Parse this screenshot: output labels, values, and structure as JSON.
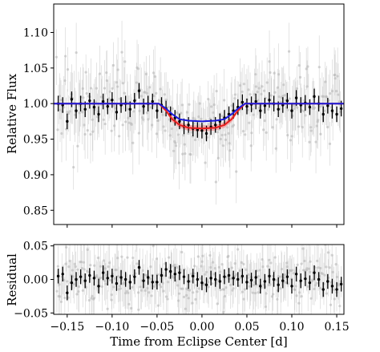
{
  "chart_data": [
    {
      "type": "scatter",
      "panel": "top",
      "ylabel": "Relative Flux",
      "xlabel": "",
      "xlim": [
        -0.165,
        0.158
      ],
      "ylim": [
        0.83,
        1.14
      ],
      "xticks": [
        -0.15,
        -0.1,
        -0.05,
        0.0,
        0.05,
        0.1,
        0.15
      ],
      "xtick_labels": [
        "",
        "",
        "",
        "",
        "",
        "",
        ""
      ],
      "yticks": [
        0.85,
        0.9,
        0.95,
        1.0,
        1.05,
        1.1
      ],
      "ytick_labels": [
        "0.85",
        "0.90",
        "0.95",
        "1.00",
        "1.05",
        "1.10"
      ],
      "grid": false,
      "colors": {
        "raw": "#b8b8b8",
        "binned": "#000000",
        "model_blue": "#1a1adc",
        "model_red": "#e61e1e",
        "band_red": "#f4a0a0"
      },
      "binned": {
        "x": [
          -0.16,
          -0.155,
          -0.15,
          -0.145,
          -0.14,
          -0.135,
          -0.13,
          -0.125,
          -0.12,
          -0.115,
          -0.11,
          -0.105,
          -0.1,
          -0.095,
          -0.09,
          -0.085,
          -0.08,
          -0.075,
          -0.07,
          -0.065,
          -0.06,
          -0.055,
          -0.05,
          -0.045,
          -0.04,
          -0.035,
          -0.03,
          -0.025,
          -0.02,
          -0.015,
          -0.01,
          -0.005,
          0.0,
          0.005,
          0.01,
          0.015,
          0.02,
          0.025,
          0.03,
          0.035,
          0.04,
          0.045,
          0.05,
          0.055,
          0.06,
          0.065,
          0.07,
          0.075,
          0.08,
          0.085,
          0.09,
          0.095,
          0.1,
          0.105,
          0.11,
          0.115,
          0.12,
          0.125,
          0.13,
          0.135,
          0.14,
          0.145,
          0.15,
          0.155
        ],
        "y": [
          1.0,
          0.998,
          0.975,
          1.006,
          0.99,
          1.0,
          0.992,
          1.004,
          0.995,
          0.985,
          1.003,
          0.996,
          1.005,
          0.988,
          0.998,
          1.0,
          0.992,
          1.004,
          1.018,
          0.996,
          1.0,
          1.003,
          0.99,
          0.998,
          0.993,
          0.985,
          0.98,
          0.975,
          0.968,
          0.97,
          0.965,
          0.963,
          0.962,
          0.958,
          0.967,
          0.97,
          0.975,
          0.98,
          0.985,
          0.99,
          0.995,
          1.002,
          0.996,
          0.999,
          1.003,
          0.99,
          0.997,
          1.005,
          1.0,
          0.992,
          0.998,
          1.004,
          0.99,
          1.008,
          0.998,
          1.001,
          0.995,
          1.01,
          1.0,
          0.985,
          0.997,
          0.99,
          0.985,
          0.993
        ],
        "yerr": 0.011
      },
      "raw": {
        "n": 330,
        "x_range": [
          -0.162,
          0.155
        ],
        "scatter_sd": 0.028,
        "yerr": 0.035,
        "seed": 7
      },
      "model_blue": {
        "x": [
          -0.165,
          -0.048,
          -0.04,
          -0.033,
          -0.025,
          -0.015,
          0.0,
          0.015,
          0.025,
          0.033,
          0.04,
          0.048,
          0.158
        ],
        "y": [
          1.0,
          1.0,
          0.993,
          0.985,
          0.978,
          0.976,
          0.975,
          0.976,
          0.978,
          0.985,
          0.993,
          1.0,
          1.0
        ]
      },
      "model_red": {
        "x": [
          -0.165,
          -0.048,
          -0.04,
          -0.033,
          -0.025,
          -0.015,
          0.0,
          0.015,
          0.025,
          0.033,
          0.04,
          0.048,
          0.158
        ],
        "y": [
          1.0,
          1.0,
          0.99,
          0.978,
          0.97,
          0.966,
          0.965,
          0.966,
          0.97,
          0.978,
          0.99,
          1.0,
          1.0
        ],
        "band": 0.004
      }
    },
    {
      "type": "scatter",
      "panel": "bottom",
      "ylabel": "Residual",
      "xlabel": "Time from Eclipse Center [d]",
      "xlim": [
        -0.165,
        0.158
      ],
      "ylim": [
        -0.052,
        0.052
      ],
      "xticks": [
        -0.15,
        -0.1,
        -0.05,
        0.0,
        0.05,
        0.1,
        0.15
      ],
      "xtick_labels": [
        "−0.15",
        "−0.10",
        "−0.05",
        "0.00",
        "0.05",
        "0.10",
        "0.15"
      ],
      "yticks": [
        -0.05,
        0.0,
        0.05
      ],
      "ytick_labels": [
        "−0.05",
        "0.00",
        "0.05"
      ],
      "grid": false,
      "binned": {
        "x": [
          -0.16,
          -0.155,
          -0.15,
          -0.145,
          -0.14,
          -0.135,
          -0.13,
          -0.125,
          -0.12,
          -0.115,
          -0.11,
          -0.105,
          -0.1,
          -0.095,
          -0.09,
          -0.085,
          -0.08,
          -0.075,
          -0.07,
          -0.065,
          -0.06,
          -0.055,
          -0.05,
          -0.045,
          -0.04,
          -0.035,
          -0.03,
          -0.025,
          -0.02,
          -0.015,
          -0.01,
          -0.005,
          0.0,
          0.005,
          0.01,
          0.015,
          0.02,
          0.025,
          0.03,
          0.035,
          0.04,
          0.045,
          0.05,
          0.055,
          0.06,
          0.065,
          0.07,
          0.075,
          0.08,
          0.085,
          0.09,
          0.095,
          0.1,
          0.105,
          0.11,
          0.115,
          0.12,
          0.125,
          0.13,
          0.135,
          0.14,
          0.145,
          0.15,
          0.155
        ],
        "y": [
          0.005,
          0.008,
          -0.02,
          -0.005,
          0.0,
          0.004,
          -0.002,
          0.006,
          0.002,
          -0.01,
          0.01,
          0.002,
          0.005,
          -0.006,
          0.003,
          0.0,
          -0.004,
          0.004,
          0.018,
          -0.002,
          0.003,
          -0.004,
          -0.004,
          0.006,
          0.015,
          0.012,
          0.008,
          0.01,
          0.004,
          -0.003,
          0.005,
          0.0,
          -0.005,
          -0.008,
          0.002,
          0.0,
          -0.003,
          0.004,
          0.006,
          0.002,
          0.0,
          0.005,
          -0.004,
          -0.001,
          0.003,
          -0.01,
          -0.003,
          0.005,
          0.0,
          -0.008,
          -0.002,
          0.004,
          -0.01,
          0.008,
          -0.002,
          0.001,
          -0.005,
          0.01,
          0.0,
          -0.015,
          -0.003,
          -0.01,
          -0.015,
          -0.007
        ],
        "yerr": 0.011
      },
      "raw": {
        "n": 330,
        "x_range": [
          -0.162,
          0.155
        ],
        "scatter_sd": 0.02,
        "yerr": 0.03,
        "seed": 11
      }
    }
  ]
}
